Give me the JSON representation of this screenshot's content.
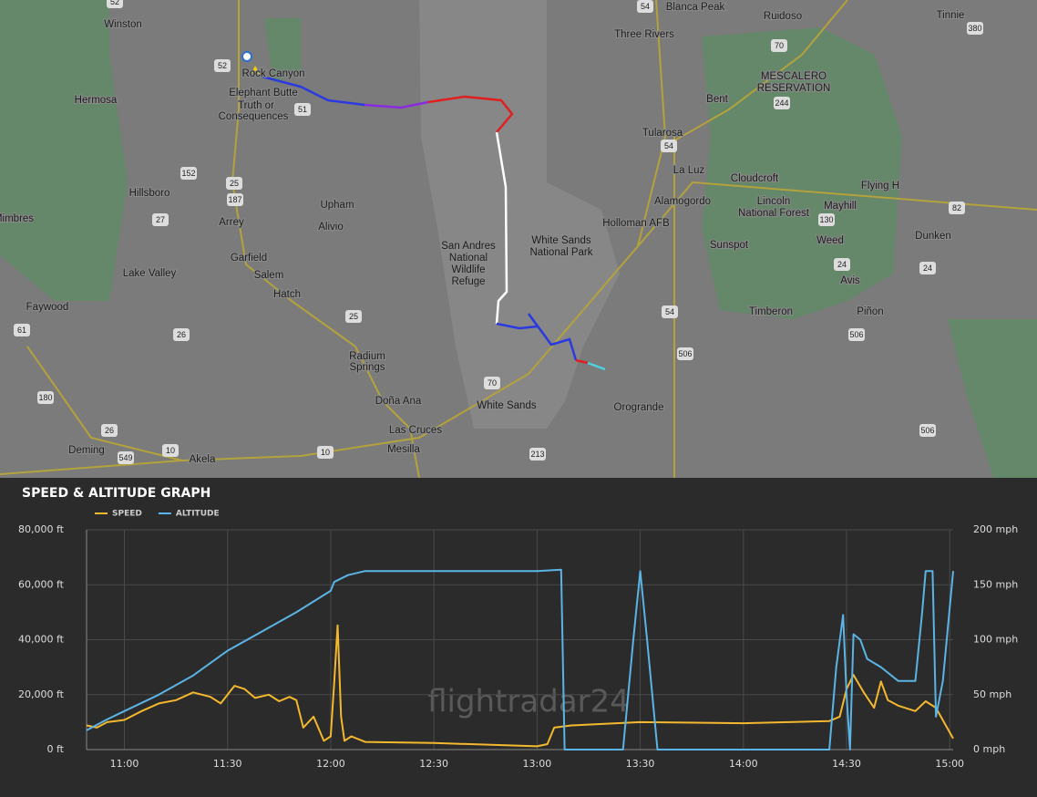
{
  "map": {
    "labels": [
      "Winston",
      "Hermosa",
      "Rock Canyon",
      "Elephant Butte",
      "Truth or",
      "Consequences",
      "Hillsboro",
      "Arrey",
      "Upham",
      "Alivio",
      "Garfield",
      "Salem",
      "Hatch",
      "Lake Valley",
      "Faywood",
      "Radium",
      "Springs",
      "Doña Ana",
      "Las Cruces",
      "Mesilla",
      "Deming",
      "Akela",
      "Mimbres",
      "San Andres",
      "National",
      "Wildlife",
      "Refuge",
      "White Sands",
      "National Park",
      "White Sands",
      "Orogrande",
      "Holloman AFB",
      "Alamogordo",
      "La Luz",
      "Tularosa",
      "Bent",
      "Three Rivers",
      "Blanca Peak",
      "Ruidoso",
      "MESCALERO",
      "RESERVATION",
      "Cloudcroft",
      "Lincoln",
      "National Forest",
      "Sunspot",
      "Weed",
      "Avis",
      "Timberon",
      "Piñon",
      "Mayhill",
      "Flying H",
      "Dunken",
      "Tinnie"
    ],
    "shields": [
      "52",
      "52",
      "51",
      "152",
      "25",
      "187",
      "27",
      "26",
      "25",
      "61",
      "180",
      "26",
      "549",
      "10",
      "10",
      "70",
      "213",
      "54",
      "54",
      "70",
      "244",
      "130",
      "24",
      "24",
      "54",
      "506",
      "506",
      "506",
      "82",
      "380"
    ]
  },
  "chart_data": {
    "type": "line",
    "title": "SPEED & ALTITUDE GRAPH",
    "watermark": "flightradar24",
    "xlim": [
      "10:49",
      "15:01"
    ],
    "xticks": [
      "11:00",
      "11:30",
      "12:00",
      "12:30",
      "13:00",
      "13:30",
      "14:00",
      "14:30",
      "15:00"
    ],
    "ylim": [
      0,
      80000
    ],
    "yticks": [
      {
        "value": 0,
        "label": "0 ft"
      },
      {
        "value": 20000,
        "label": "20,000 ft"
      },
      {
        "value": 40000,
        "label": "40,000 ft"
      },
      {
        "value": 60000,
        "label": "60,000 ft"
      },
      {
        "value": 80000,
        "label": "80,000 ft"
      }
    ],
    "y2lim": [
      0,
      200
    ],
    "y2ticks": [
      {
        "value": 0,
        "label": "0 mph"
      },
      {
        "value": 50,
        "label": "50 mph"
      },
      {
        "value": 100,
        "label": "100 mph"
      },
      {
        "value": 150,
        "label": "150 mph"
      },
      {
        "value": 200,
        "label": "200 mph"
      }
    ],
    "grid": true,
    "series": [
      {
        "name": "SPEED",
        "color": "#f4b82e",
        "axis": "y2",
        "x": [
          "10:49",
          "10:52",
          "10:55",
          "11:00",
          "11:05",
          "11:10",
          "11:15",
          "11:20",
          "11:25",
          "11:28",
          "11:32",
          "11:35",
          "11:38",
          "11:42",
          "11:45",
          "11:48",
          "11:50",
          "11:52",
          "11:55",
          "11:58",
          "12:00",
          "12:01",
          "12:02",
          "12:03",
          "12:04",
          "12:06",
          "12:10",
          "12:30",
          "13:00",
          "13:03",
          "13:05",
          "13:10",
          "13:30",
          "14:00",
          "14:25",
          "14:28",
          "14:30",
          "14:32",
          "14:35",
          "14:38",
          "14:40",
          "14:42",
          "14:45",
          "14:50",
          "14:53",
          "14:56",
          "15:01"
        ],
        "values": [
          22,
          20,
          25,
          27,
          35,
          42,
          45,
          52,
          48,
          42,
          58,
          55,
          47,
          50,
          44,
          48,
          45,
          20,
          30,
          8,
          12,
          60,
          113,
          30,
          8,
          12,
          7,
          6,
          3,
          5,
          20,
          22,
          25,
          24,
          26,
          30,
          55,
          68,
          52,
          38,
          62,
          45,
          40,
          35,
          44,
          38,
          10
        ]
      },
      {
        "name": "ALTITUDE",
        "color": "#5ab4e5",
        "x": [
          "10:49",
          "10:55",
          "11:00",
          "11:10",
          "11:20",
          "11:30",
          "11:40",
          "11:50",
          "12:00",
          "12:01",
          "12:05",
          "12:10",
          "12:30",
          "13:00",
          "13:07",
          "13:08",
          "13:25",
          "13:28",
          "13:30",
          "13:32",
          "13:35",
          "14:25",
          "14:27",
          "14:29",
          "14:30",
          "14:31",
          "14:32",
          "14:34",
          "14:36",
          "14:40",
          "14:45",
          "14:50",
          "14:52",
          "14:53",
          "14:55",
          "14:56",
          "14:58",
          "15:01"
        ],
        "values": [
          7000,
          11000,
          14000,
          20000,
          27000,
          36000,
          43000,
          50000,
          57800,
          61000,
          63500,
          65000,
          65000,
          65000,
          65500,
          0,
          0,
          40000,
          65000,
          40000,
          0,
          0,
          30000,
          49000,
          20000,
          0,
          42000,
          40000,
          33000,
          30000,
          25000,
          25000,
          50000,
          65000,
          65000,
          12000,
          25000,
          65000
        ]
      }
    ]
  }
}
